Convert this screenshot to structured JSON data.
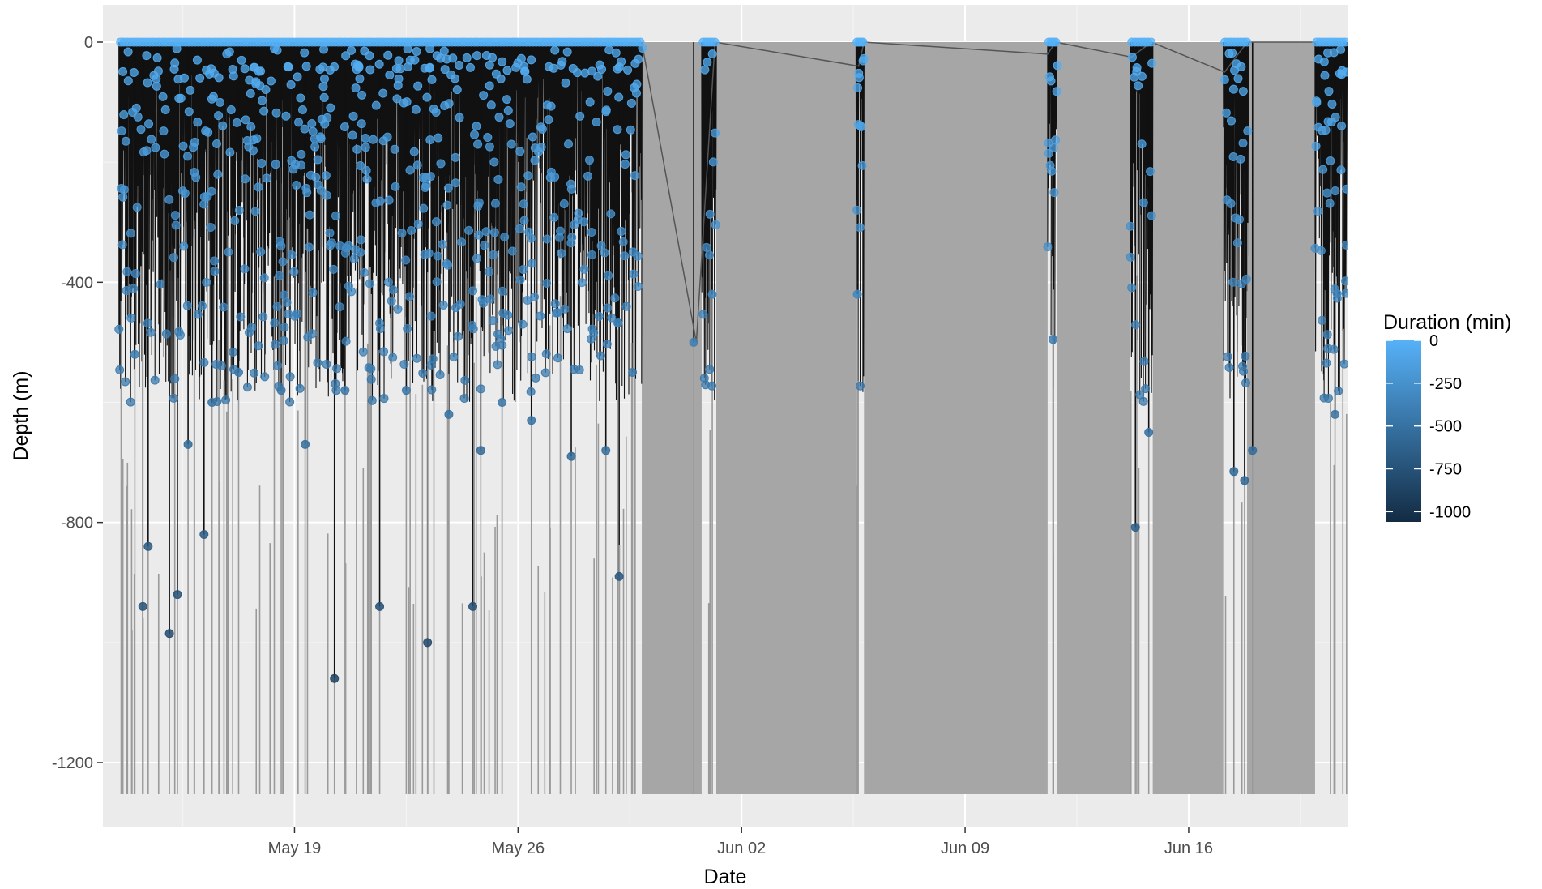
{
  "chart_data": {
    "type": "scatter",
    "title": "",
    "xlabel": "Date",
    "ylabel": "Depth (m)",
    "x_range": [
      "2019-05-13",
      "2019-06-21"
    ],
    "ylim": [
      -1250,
      0
    ],
    "x_ticks": [
      {
        "date": "2019-05-19",
        "label": "May 19"
      },
      {
        "date": "2019-05-26",
        "label": "May 26"
      },
      {
        "date": "2019-06-02",
        "label": "Jun 02"
      },
      {
        "date": "2019-06-09",
        "label": "Jun 09"
      },
      {
        "date": "2019-06-16",
        "label": "Jun 16"
      }
    ],
    "y_ticks": [
      {
        "value": 0,
        "label": "0"
      },
      {
        "value": -400,
        "label": "-400"
      },
      {
        "value": -800,
        "label": "-800"
      },
      {
        "value": -1200,
        "label": "-1200"
      }
    ],
    "grid": true,
    "colors": {
      "panel": "#ebebeb",
      "grid_major": "#ffffff",
      "gap_fill": "#a6a6a6",
      "dive_line": "#111111",
      "connector": "#555555",
      "point_shallow": "#56b1f7",
      "point_deep": "#132b43"
    },
    "legend": {
      "title": "Duration (min)",
      "position": "right",
      "colorbar": {
        "min": -1060,
        "max": 0,
        "low_color": "#132b43",
        "high_color": "#56b1f7"
      },
      "ticks": [
        {
          "value": 0,
          "label": "0"
        },
        {
          "value": -250,
          "label": "-250"
        },
        {
          "value": -500,
          "label": "-500"
        },
        {
          "value": -750,
          "label": "-750"
        },
        {
          "value": -1000,
          "label": "-1000"
        }
      ]
    },
    "dive_periods": [
      [
        "2019-05-13T12:00",
        "2019-05-29T21:00"
      ],
      [
        "2019-05-31T18:00",
        "2019-06-01T05:00"
      ],
      [
        "2019-06-05T14:00",
        "2019-06-05T20:00"
      ],
      [
        "2019-06-11T14:00",
        "2019-06-11T21:00"
      ],
      [
        "2019-06-14T04:00",
        "2019-06-14T21:00"
      ],
      [
        "2019-06-17T02:00",
        "2019-06-17T21:00"
      ],
      [
        "2019-06-19T23:00",
        "2019-06-20T23:00"
      ]
    ],
    "no_data_gaps": [
      [
        "2019-05-29T21:00",
        "2019-05-31T18:00"
      ],
      [
        "2019-06-01T05:00",
        "2019-06-05T14:00"
      ],
      [
        "2019-06-05T20:00",
        "2019-06-11T14:00"
      ],
      [
        "2019-06-11T21:00",
        "2019-06-14T04:00"
      ],
      [
        "2019-06-14T21:00",
        "2019-06-17T02:00"
      ],
      [
        "2019-06-17T21:00",
        "2019-06-19T23:00"
      ]
    ],
    "connector_points": [
      {
        "date": "2019-05-29T21:00",
        "depth": 0
      },
      {
        "date": "2019-05-31T14:00",
        "depth": -500
      },
      {
        "date": "2019-06-01T04:00",
        "depth": 0
      },
      {
        "date": "2019-06-05T16:00",
        "depth": -40
      },
      {
        "date": "2019-06-05T20:00",
        "depth": 0
      },
      {
        "date": "2019-06-11T14:00",
        "depth": -20
      },
      {
        "date": "2019-06-11T20:00",
        "depth": 0
      },
      {
        "date": "2019-06-14T05:00",
        "depth": -25
      },
      {
        "date": "2019-06-14T20:00",
        "depth": 0
      },
      {
        "date": "2019-06-17T03:00",
        "depth": -50
      },
      {
        "date": "2019-06-17T20:00",
        "depth": 0
      },
      {
        "date": "2019-06-20T22:00",
        "depth": 0
      }
    ],
    "deep_dives": [
      {
        "date": "2019-05-14T00:00",
        "depth": -520,
        "duration": -420
      },
      {
        "date": "2019-05-14T06:00",
        "depth": -940,
        "duration": -760
      },
      {
        "date": "2019-05-14T10:00",
        "depth": -840,
        "duration": -700
      },
      {
        "date": "2019-05-15T02:00",
        "depth": -985,
        "duration": -820
      },
      {
        "date": "2019-05-15T08:00",
        "depth": -920,
        "duration": -760
      },
      {
        "date": "2019-05-15T16:00",
        "depth": -670,
        "duration": -560
      },
      {
        "date": "2019-05-16T04:00",
        "depth": -820,
        "duration": -680
      },
      {
        "date": "2019-05-16T10:00",
        "depth": -600,
        "duration": -500
      },
      {
        "date": "2019-05-17T06:00",
        "depth": -550,
        "duration": -450
      },
      {
        "date": "2019-05-18T14:00",
        "depth": -580,
        "duration": -480
      },
      {
        "date": "2019-05-19T08:00",
        "depth": -670,
        "duration": -540
      },
      {
        "date": "2019-05-20T06:00",
        "depth": -1060,
        "duration": -900
      },
      {
        "date": "2019-05-20T14:00",
        "depth": -580,
        "duration": -470
      },
      {
        "date": "2019-05-21T16:00",
        "depth": -940,
        "duration": -780
      },
      {
        "date": "2019-05-22T12:00",
        "depth": -580,
        "duration": -460
      },
      {
        "date": "2019-05-23T04:00",
        "depth": -1000,
        "duration": -840
      },
      {
        "date": "2019-05-23T20:00",
        "depth": -620,
        "duration": -500
      },
      {
        "date": "2019-05-24T14:00",
        "depth": -940,
        "duration": -780
      },
      {
        "date": "2019-05-24T20:00",
        "depth": -680,
        "duration": -560
      },
      {
        "date": "2019-05-25T12:00",
        "depth": -600,
        "duration": -480
      },
      {
        "date": "2019-05-26T10:00",
        "depth": -630,
        "duration": -500
      },
      {
        "date": "2019-05-27T16:00",
        "depth": -690,
        "duration": -560
      },
      {
        "date": "2019-05-28T18:00",
        "depth": -680,
        "duration": -540
      },
      {
        "date": "2019-05-29T04:00",
        "depth": -890,
        "duration": -720
      },
      {
        "date": "2019-05-29T14:00",
        "depth": -550,
        "duration": -440
      },
      {
        "date": "2019-05-31T12:00",
        "depth": -500,
        "duration": -400
      },
      {
        "date": "2019-06-01T02:00",
        "depth": -420,
        "duration": -340
      },
      {
        "date": "2019-06-05T15:00",
        "depth": -420,
        "duration": -340
      },
      {
        "date": "2019-06-11T18:00",
        "depth": -495,
        "duration": -400
      },
      {
        "date": "2019-06-14T08:00",
        "depth": -808,
        "duration": -660
      },
      {
        "date": "2019-06-14T18:00",
        "depth": -650,
        "duration": -520
      },
      {
        "date": "2019-06-17T10:00",
        "depth": -715,
        "duration": -580
      },
      {
        "date": "2019-06-17T18:00",
        "depth": -730,
        "duration": -600
      },
      {
        "date": "2019-06-18T00:00",
        "depth": -680,
        "duration": -550
      },
      {
        "date": "2019-06-20T14:00",
        "depth": -620,
        "duration": -500
      }
    ]
  }
}
